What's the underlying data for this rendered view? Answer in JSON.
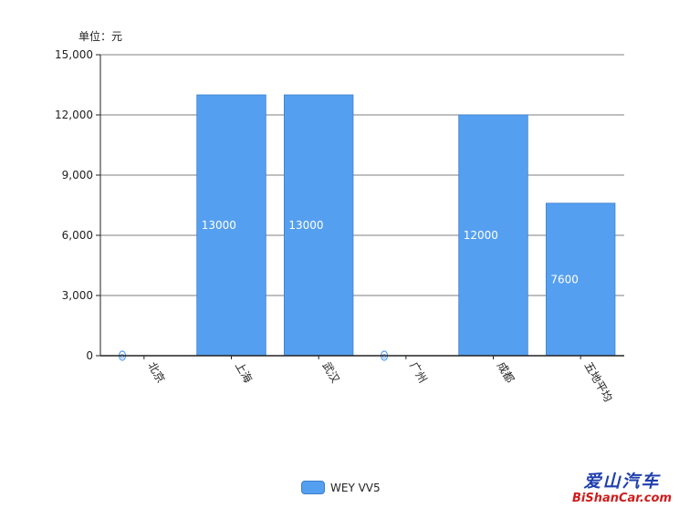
{
  "unit_label": "单位：元",
  "legend": {
    "label": "WEY VV5",
    "color": "#559ff0",
    "placement": "bottom-center"
  },
  "watermark": {
    "chinese": "爱山汽车",
    "english": "BiShanCar.com"
  },
  "chart_data": {
    "type": "bar",
    "categories": [
      "北京",
      "上海",
      "武汉",
      "广州",
      "成都",
      "五地平均"
    ],
    "series": [
      {
        "name": "WEY VV5",
        "values": [
          0,
          13000,
          13000,
          0,
          12000,
          7600
        ],
        "color": "#559ff0"
      }
    ],
    "data_labels": [
      "0",
      "13000",
      "13000",
      "0",
      "12000",
      "7600"
    ],
    "ylim": [
      0,
      15000
    ],
    "yticks": [
      0,
      3000,
      6000,
      9000,
      12000,
      15000
    ],
    "ytick_labels": [
      "0",
      "3,000",
      "6,000",
      "9,000",
      "12,000",
      "15,000"
    ],
    "grid": true,
    "xlabel": "",
    "ylabel": ""
  }
}
